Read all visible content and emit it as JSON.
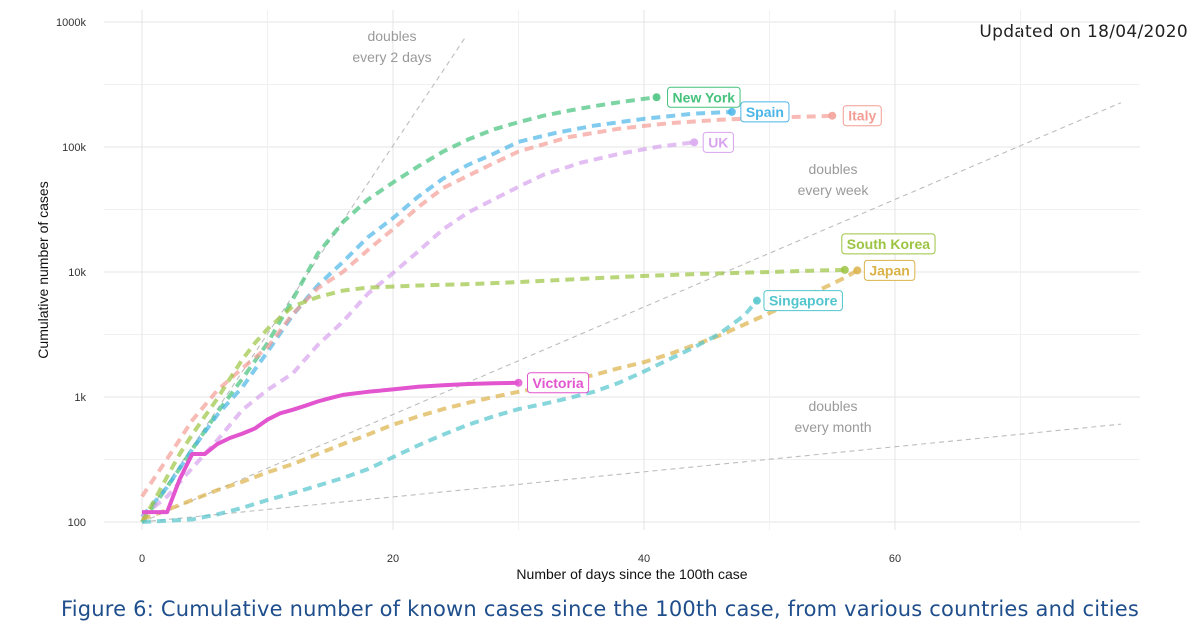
{
  "updated": "Updated on 18/04/2020",
  "caption": "Figure 6: Cumulative number of known cases since the 100th case, from various countries and cities",
  "chart_data": {
    "type": "line",
    "title": "",
    "xlabel": "Number of days since the 100th case",
    "ylabel": "Cumulative number of cases",
    "xlim": [
      -3,
      79
    ],
    "ylim": [
      100,
      1000000
    ],
    "yscale": "log",
    "x_ticks": [
      0,
      20,
      40,
      60
    ],
    "x_tick_labels": [
      "0",
      "20",
      "40",
      "60"
    ],
    "y_ticks": [
      100,
      1000,
      10000,
      100000,
      1000000
    ],
    "y_tick_labels": [
      "100",
      "1k",
      "10k",
      "100k",
      "1000k"
    ],
    "grid": true,
    "reference_lines": [
      {
        "name": "doubles every 2 days",
        "text1": "doubles",
        "text2": "every 2 days",
        "doubling_days": 2
      },
      {
        "name": "doubles every week",
        "text1": "doubles",
        "text2": "every week",
        "doubling_days": 7
      },
      {
        "name": "doubles every month",
        "text1": "doubles",
        "text2": "every month",
        "doubling_days": 30
      }
    ],
    "series": [
      {
        "name": "Victoria",
        "color": "#e255cf",
        "style": "solid",
        "x": [
          0,
          1,
          2,
          3,
          4,
          5,
          6,
          7,
          8,
          9,
          10,
          11,
          12,
          13,
          14,
          15,
          16,
          18,
          20,
          22,
          24,
          26,
          28,
          30
        ],
        "y": [
          120,
          120,
          120,
          220,
          350,
          350,
          420,
          470,
          510,
          560,
          660,
          740,
          790,
          850,
          920,
          980,
          1040,
          1100,
          1150,
          1210,
          1240,
          1270,
          1290,
          1300
        ]
      },
      {
        "name": "New York",
        "color": "#45c27c",
        "style": "dashed",
        "x": [
          0,
          2,
          4,
          6,
          8,
          10,
          12,
          14,
          16,
          18,
          20,
          22,
          24,
          26,
          28,
          30,
          32,
          34,
          36,
          38,
          40,
          41
        ],
        "y": [
          100,
          190,
          380,
          750,
          1400,
          2700,
          6000,
          14000,
          25000,
          38000,
          52000,
          70000,
          92000,
          115000,
          138000,
          158000,
          178000,
          195000,
          212000,
          228000,
          243000,
          250000
        ]
      },
      {
        "name": "Spain",
        "color": "#4cb5e8",
        "style": "dashed",
        "x": [
          0,
          2,
          4,
          6,
          8,
          10,
          12,
          14,
          16,
          18,
          20,
          22,
          24,
          26,
          28,
          30,
          33,
          36,
          40,
          44,
          47
        ],
        "y": [
          110,
          190,
          380,
          720,
          1200,
          2300,
          4500,
          7800,
          12000,
          19000,
          27000,
          40000,
          56000,
          72000,
          88000,
          110000,
          130000,
          148000,
          168000,
          185000,
          191000
        ]
      },
      {
        "name": "Italy",
        "color": "#f39d95",
        "style": "dashed",
        "x": [
          0,
          2,
          4,
          6,
          8,
          10,
          12,
          14,
          16,
          18,
          20,
          22,
          24,
          26,
          28,
          30,
          34,
          38,
          42,
          46,
          50,
          54,
          55
        ],
        "y": [
          160,
          320,
          650,
          1130,
          1700,
          2500,
          4600,
          7400,
          10000,
          15000,
          22000,
          33000,
          47000,
          59000,
          74000,
          92000,
          120000,
          140000,
          155000,
          165000,
          172000,
          176000,
          178000
        ]
      },
      {
        "name": "UK",
        "color": "#d7a3ee",
        "style": "dashed",
        "x": [
          0,
          2,
          4,
          6,
          8,
          10,
          12,
          14,
          16,
          18,
          20,
          22,
          24,
          26,
          28,
          30,
          32,
          35,
          38,
          41,
          44
        ],
        "y": [
          110,
          160,
          270,
          450,
          790,
          1140,
          1540,
          2600,
          4000,
          6700,
          9800,
          14600,
          22000,
          30000,
          38000,
          48000,
          60000,
          75000,
          88000,
          100000,
          109000
        ]
      },
      {
        "name": "South Korea",
        "color": "#9cc441",
        "style": "dashed",
        "x": [
          0,
          1,
          2,
          3,
          4,
          5,
          6,
          7,
          8,
          9,
          10,
          12,
          14,
          16,
          18,
          22,
          26,
          30,
          35,
          40,
          45,
          50,
          54,
          56
        ],
        "y": [
          100,
          150,
          230,
          350,
          500,
          700,
          970,
          1400,
          2000,
          2700,
          3500,
          5300,
          6300,
          7100,
          7500,
          7800,
          8000,
          8300,
          8800,
          9300,
          9700,
          10000,
          10300,
          10400
        ]
      },
      {
        "name": "Japan",
        "color": "#dbb249",
        "style": "dashed",
        "x": [
          0,
          2,
          4,
          6,
          8,
          10,
          12,
          14,
          16,
          18,
          20,
          22,
          24,
          26,
          28,
          30,
          32,
          34,
          36,
          38,
          40,
          42,
          44,
          46,
          48,
          50,
          52,
          54,
          56,
          57
        ],
        "y": [
          105,
          125,
          150,
          180,
          210,
          250,
          290,
          350,
          420,
          500,
          600,
          700,
          800,
          900,
          1000,
          1100,
          1200,
          1350,
          1500,
          1700,
          1900,
          2200,
          2600,
          3100,
          3800,
          4700,
          5800,
          7200,
          9000,
          10300
        ]
      },
      {
        "name": "Singapore",
        "color": "#52c5cd",
        "style": "dashed",
        "x": [
          0,
          4,
          6,
          8,
          10,
          12,
          14,
          16,
          18,
          20,
          22,
          24,
          26,
          28,
          30,
          32,
          34,
          36,
          38,
          40,
          42,
          44,
          46,
          48,
          49
        ],
        "y": [
          100,
          105,
          115,
          130,
          150,
          170,
          195,
          225,
          265,
          330,
          410,
          500,
          600,
          700,
          800,
          880,
          980,
          1100,
          1300,
          1600,
          2000,
          2500,
          3200,
          4500,
          5900
        ]
      }
    ],
    "labels": [
      {
        "series": "New York",
        "text": "New York",
        "x": 41,
        "y": 250000
      },
      {
        "series": "Spain",
        "text": "Spain",
        "x": 47,
        "y": 191000
      },
      {
        "series": "Italy",
        "text": "Italy",
        "x": 55,
        "y": 178000
      },
      {
        "series": "UK",
        "text": "UK",
        "x": 44,
        "y": 109000
      },
      {
        "series": "South Korea",
        "text": "South Korea",
        "x": 56,
        "y": 10400
      },
      {
        "series": "Japan",
        "text": "Japan",
        "x": 57,
        "y": 10300
      },
      {
        "series": "Singapore",
        "text": "Singapore",
        "x": 49,
        "y": 5900
      },
      {
        "series": "Victoria",
        "text": "Victoria",
        "x": 30,
        "y": 1300
      }
    ]
  }
}
